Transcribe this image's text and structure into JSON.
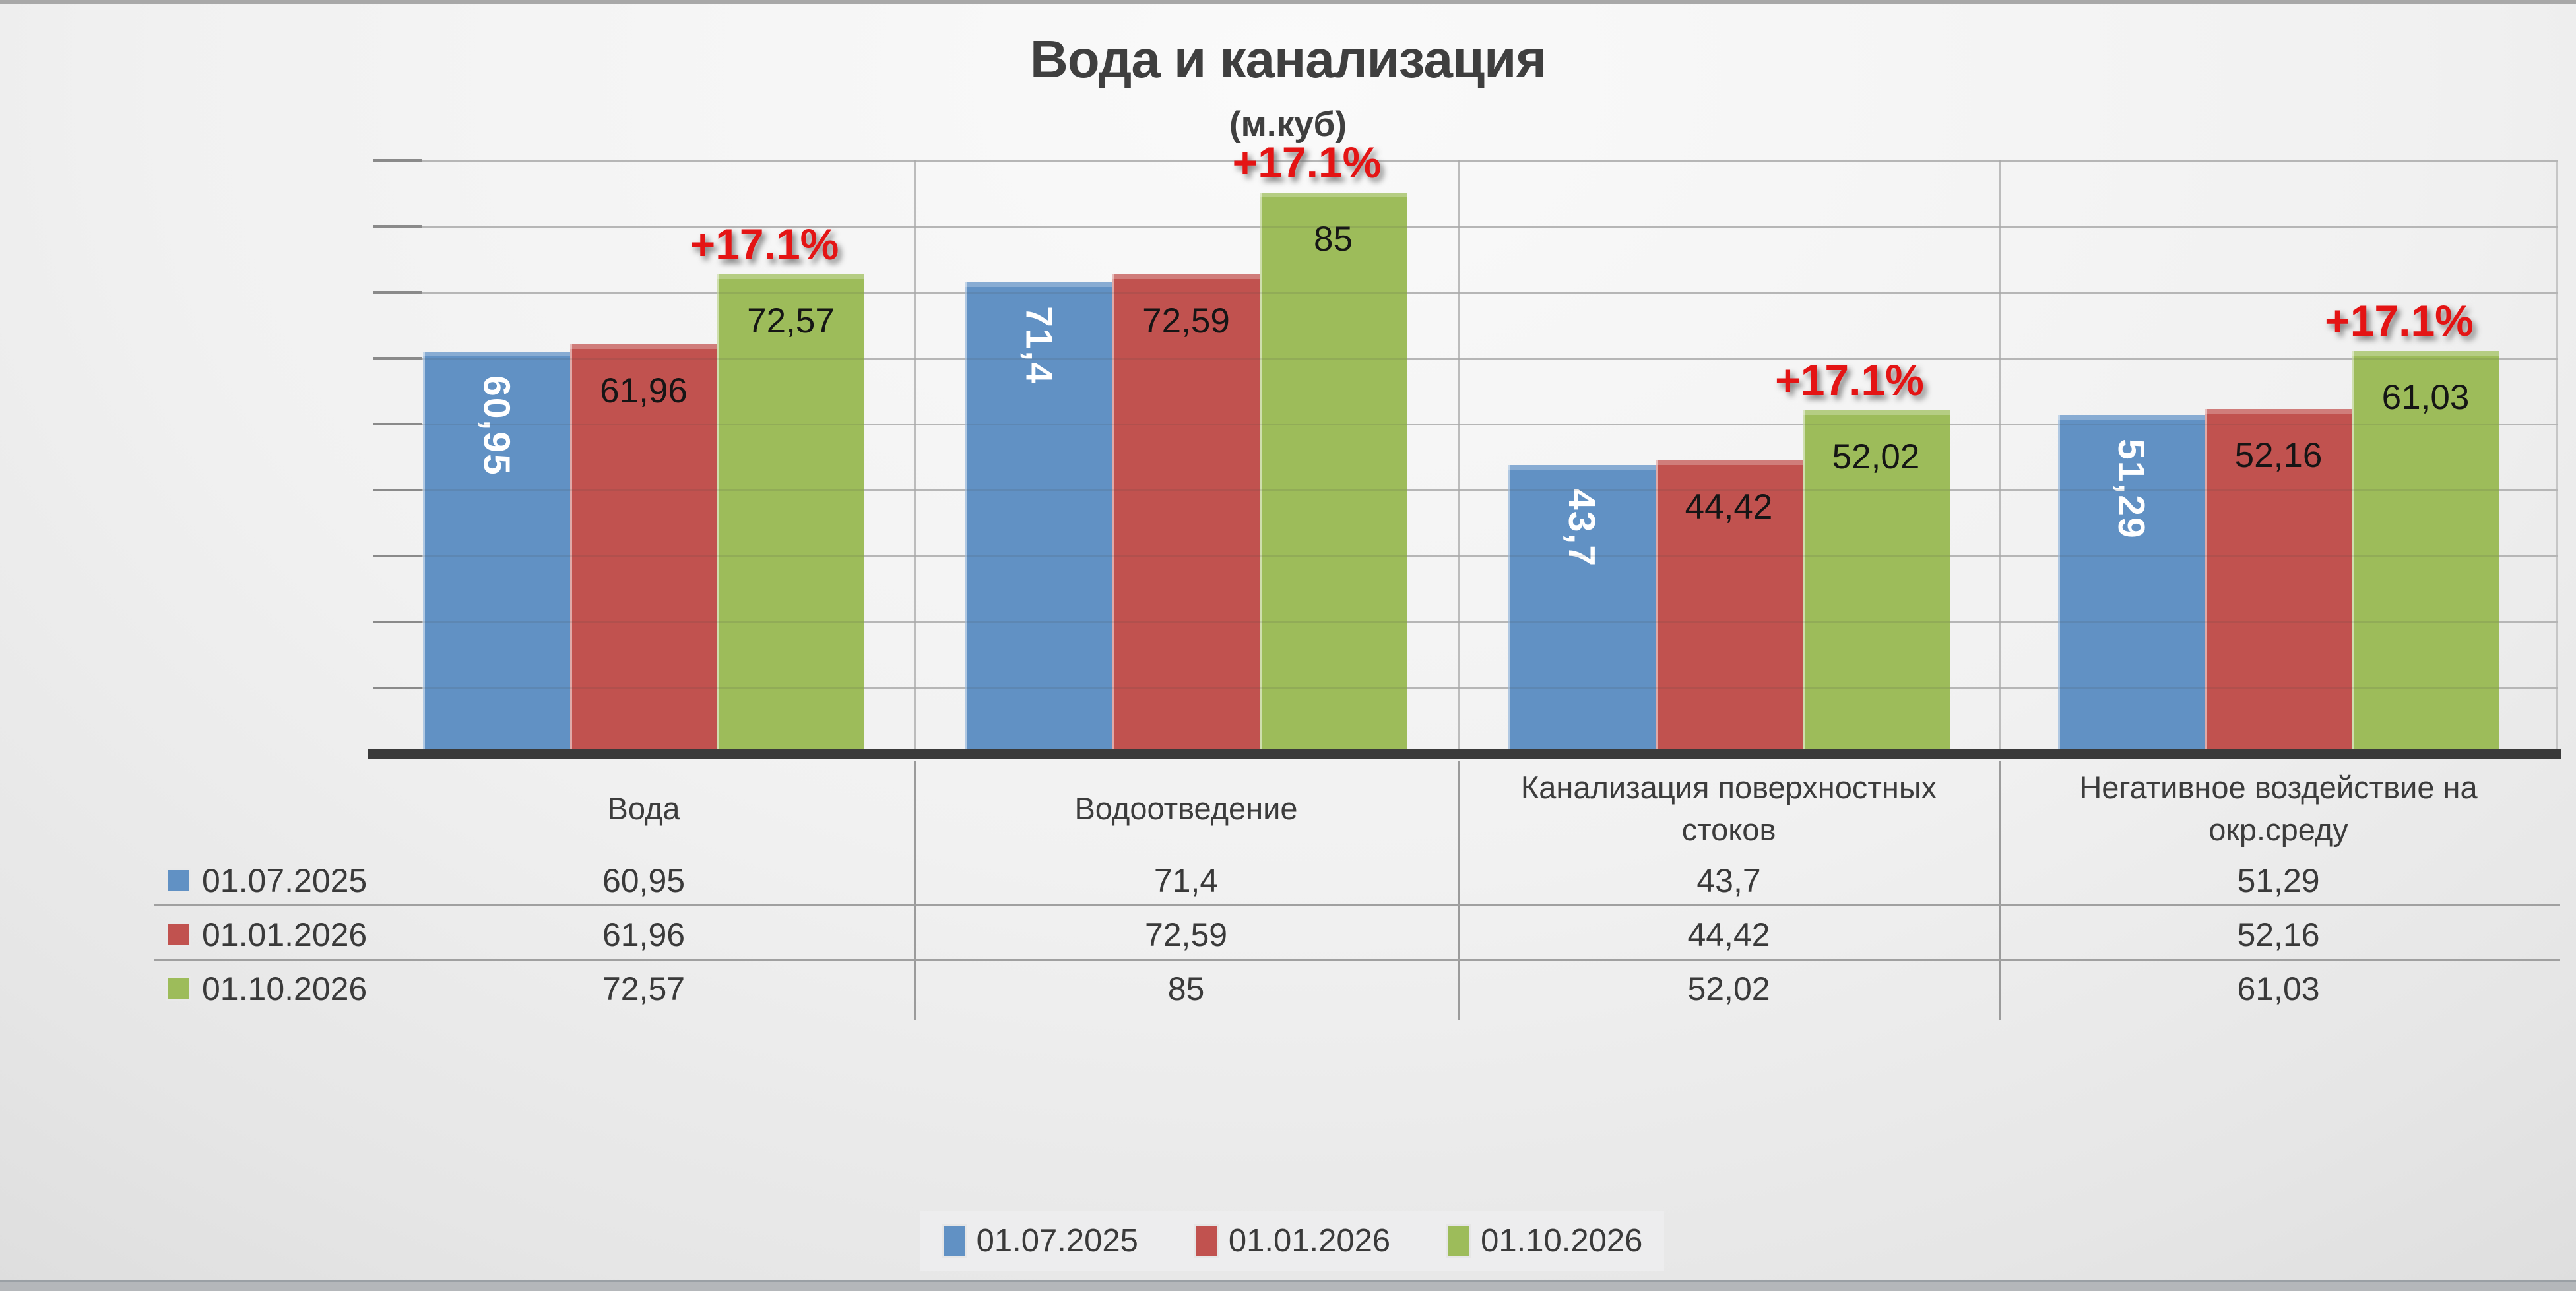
{
  "chart_data": {
    "type": "bar",
    "title": "Вода и канализация",
    "subtitle": "(м.куб)",
    "categories": [
      "Вода",
      "Водоотведение",
      "Канализация поверхностных стоков",
      "Негативное воздействие на окр.среду"
    ],
    "category_lines": [
      [
        "Вода"
      ],
      [
        "Водоотведение"
      ],
      [
        "Канализация поверхностных",
        "стоков"
      ],
      [
        "Негативное воздействие на",
        "окр.среду"
      ]
    ],
    "series": [
      {
        "name": "01.07.2025",
        "color": "#6191c4",
        "values": [
          60.95,
          71.4,
          43.7,
          51.29
        ],
        "labels": [
          "60,95",
          "71,4",
          "43,7",
          "51,29"
        ]
      },
      {
        "name": "01.01.2026",
        "color": "#c1524f",
        "values": [
          61.96,
          72.59,
          44.42,
          52.16
        ],
        "labels": [
          "61,96",
          "72,59",
          "44,42",
          "52,16"
        ]
      },
      {
        "name": "01.10.2026",
        "color": "#9dbc5a",
        "values": [
          72.57,
          85,
          52.02,
          61.03
        ],
        "labels": [
          "72,57",
          "85",
          "52,02",
          "61,03"
        ]
      }
    ],
    "annotations": [
      "+17.1%",
      "+17.1%",
      "+17.1%",
      "+17.1%"
    ],
    "annotation_color": "#e41414",
    "ylim": [
      0,
      90
    ],
    "grid_step": 10,
    "grid": true,
    "y_axis_labels": false,
    "legend_position": "bottom"
  }
}
